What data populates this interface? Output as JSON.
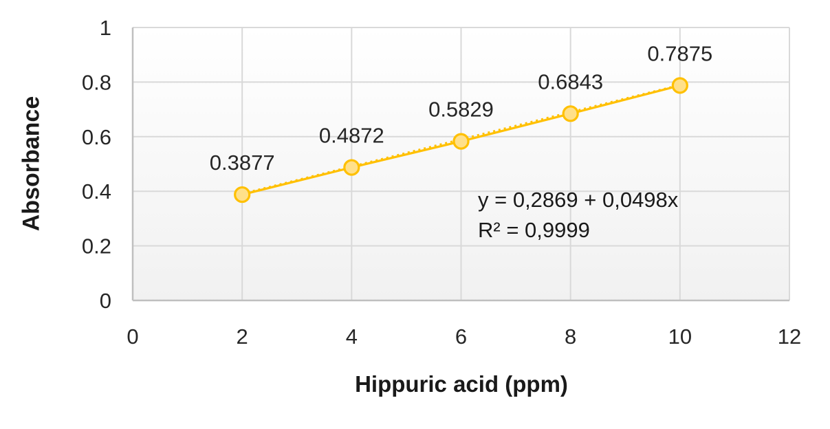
{
  "chart_data": {
    "type": "line",
    "title": "",
    "xlabel": "Hippuric acid (ppm)",
    "ylabel": "Absorbance",
    "x": [
      2,
      4,
      6,
      8,
      10
    ],
    "y": [
      0.3877,
      0.4872,
      0.5829,
      0.6843,
      0.7875
    ],
    "point_labels": [
      "0.3877",
      "0.4872",
      "0.5829",
      "0.6843",
      "0.7875"
    ],
    "xlim": [
      0,
      12
    ],
    "ylim": [
      0,
      1
    ],
    "xticks": [
      0,
      2,
      4,
      6,
      8,
      10,
      12
    ],
    "xtick_labels": [
      "0",
      "2",
      "4",
      "6",
      "8",
      "10",
      "12"
    ],
    "yticks": [
      0,
      0.2,
      0.4,
      0.6,
      0.8,
      1
    ],
    "ytick_labels": [
      "0",
      "0.2",
      "0.4",
      "0.6",
      "0.8",
      "1"
    ],
    "grid": true,
    "legend": "none",
    "annotation": {
      "equation": "y = 0,2869 + 0,0498x",
      "r_squared": "R² = 0,9999"
    },
    "trendline": {
      "intercept": 0.2869,
      "slope": 0.0498,
      "x_start": 2,
      "x_end": 10,
      "style": "dashed"
    },
    "colors": {
      "series_line": "#FFC000",
      "marker_fill": "#FFE08A",
      "marker_stroke": "#FFC000",
      "gridline": "#D9D9D9",
      "axis_line": "#BFBFBF",
      "tick_text": "#262626",
      "label_text": "#262626",
      "annotation_text": "#1a1a1a",
      "plot_fill_top": "#ffffff",
      "plot_fill_bottom": "#f1f1f1"
    }
  }
}
